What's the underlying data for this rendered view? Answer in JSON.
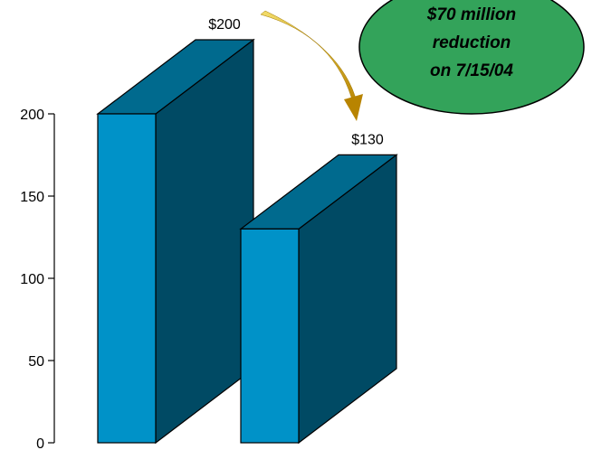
{
  "chart_data": {
    "type": "bar",
    "style": "3d",
    "categories": [
      "",
      ""
    ],
    "values": [
      200,
      130
    ],
    "data_labels": [
      "$200",
      "$130"
    ],
    "ylim": [
      0,
      200
    ],
    "yticks": [
      0,
      50,
      100,
      150,
      200
    ],
    "ytick_labels": [
      "0",
      "50",
      "100",
      "150",
      "200"
    ],
    "xlabel": "",
    "ylabel": "",
    "grid": false,
    "annotation": {
      "lines": [
        "$70 million",
        "reduction",
        "on 7/15/04"
      ],
      "shape": "ellipse",
      "arrow": "curved from first bar to second bar"
    }
  },
  "colors": {
    "bar_front": "#0092c8",
    "bar_top": "#006a8e",
    "bar_side": "#004a64",
    "bar_outline": "#000000",
    "callout_fill": "#33a35a",
    "arrow": "#c79a00"
  }
}
